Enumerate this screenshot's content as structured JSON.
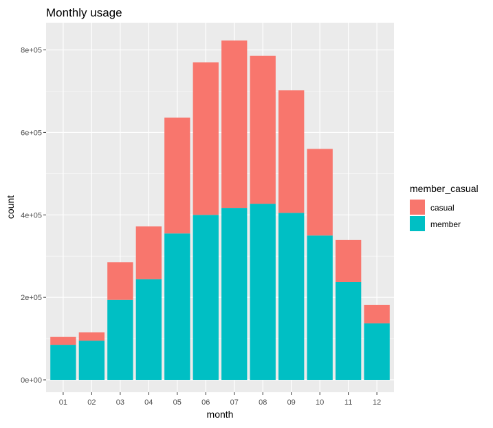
{
  "chart_data": {
    "type": "bar",
    "stacked": true,
    "title": "Monthly usage",
    "xlabel": "month",
    "ylabel": "count",
    "categories": [
      "01",
      "02",
      "03",
      "04",
      "05",
      "06",
      "07",
      "08",
      "09",
      "10",
      "11",
      "12"
    ],
    "series": [
      {
        "name": "casual",
        "color": "#F8766D",
        "values": [
          19000,
          20000,
          91000,
          128000,
          281000,
          370000,
          406000,
          359000,
          297000,
          210000,
          102000,
          45000
        ]
      },
      {
        "name": "member",
        "color": "#00BFC4",
        "values": [
          85000,
          95000,
          194000,
          244000,
          355000,
          400000,
          417000,
          427000,
          405000,
          350000,
          237000,
          137000
        ]
      }
    ],
    "stack_order_bottom_to_top": [
      "member",
      "casual"
    ],
    "ylim": [
      -30000,
      866000
    ],
    "yticks": [
      0,
      200000,
      400000,
      600000,
      800000
    ],
    "ytick_labels": [
      "0e+00",
      "2e+05",
      "4e+05",
      "6e+05",
      "8e+05"
    ],
    "legend": {
      "title": "member_casual",
      "position": "right",
      "entries": [
        "casual",
        "member"
      ]
    },
    "panel_background": "#EBEBEB",
    "grid": true
  }
}
